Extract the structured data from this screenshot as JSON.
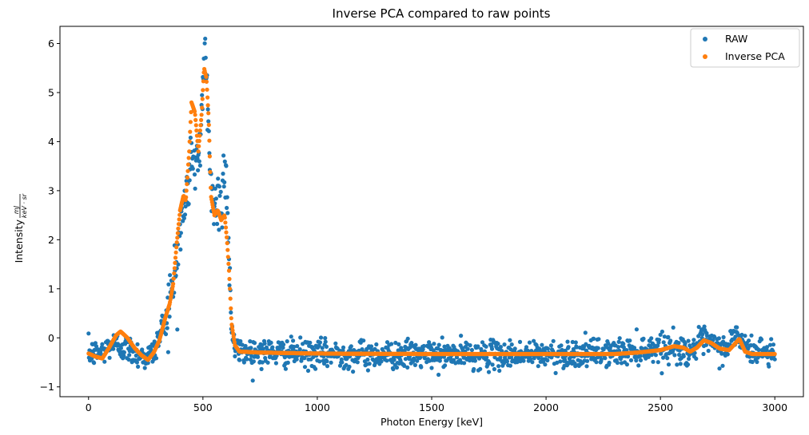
{
  "chart_data": {
    "type": "scatter",
    "title": "Inverse PCA compared to raw points",
    "xlabel": "Photon Energy [keV]",
    "ylabel_prefix": "Intensity",
    "ylabel_unit_numerator": "mJ",
    "ylabel_unit_denominator": "keV · sr",
    "xlim": [
      -125,
      3125
    ],
    "ylim": [
      -1.2,
      6.35
    ],
    "xticks": [
      0,
      500,
      1000,
      1500,
      2000,
      2500,
      3000
    ],
    "xtick_labels": [
      "0",
      "500",
      "1000",
      "1500",
      "2000",
      "2500",
      "3000"
    ],
    "yticks": [
      -1,
      0,
      1,
      2,
      3,
      4,
      5,
      6
    ],
    "ytick_labels": [
      "−1",
      "0",
      "1",
      "2",
      "3",
      "4",
      "5",
      "6"
    ],
    "grid": false,
    "legend_position": "top-right",
    "x_range": [
      0,
      3000
    ],
    "point_step": 2,
    "series": [
      {
        "name": "RAW",
        "color": "#1f77b4",
        "noise_sd": 0.14,
        "profile": [
          [
            0,
            -0.3
          ],
          [
            30,
            -0.32
          ],
          [
            60,
            -0.3
          ],
          [
            90,
            -0.15
          ],
          [
            130,
            -0.15
          ],
          [
            180,
            -0.25
          ],
          [
            230,
            -0.35
          ],
          [
            260,
            -0.4
          ],
          [
            290,
            -0.25
          ],
          [
            320,
            0.2
          ],
          [
            345,
            0.6
          ],
          [
            365,
            0.9
          ],
          [
            385,
            1.5
          ],
          [
            400,
            2.2
          ],
          [
            420,
            2.6
          ],
          [
            440,
            3.3
          ],
          [
            455,
            3.9
          ],
          [
            470,
            3.6
          ],
          [
            485,
            3.8
          ],
          [
            500,
            5.0
          ],
          [
            510,
            5.6
          ],
          [
            520,
            4.8
          ],
          [
            535,
            3.2
          ],
          [
            550,
            2.6
          ],
          [
            565,
            2.8
          ],
          [
            580,
            2.9
          ],
          [
            595,
            3.4
          ],
          [
            605,
            3.2
          ],
          [
            615,
            1.5
          ],
          [
            625,
            0.2
          ],
          [
            640,
            -0.25
          ],
          [
            700,
            -0.28
          ],
          [
            800,
            -0.3
          ],
          [
            1000,
            -0.33
          ],
          [
            1500,
            -0.35
          ],
          [
            2000,
            -0.34
          ],
          [
            2300,
            -0.3
          ],
          [
            2450,
            -0.22
          ],
          [
            2500,
            -0.18
          ],
          [
            2560,
            -0.2
          ],
          [
            2620,
            -0.28
          ],
          [
            2650,
            -0.18
          ],
          [
            2690,
            -0.05
          ],
          [
            2730,
            -0.15
          ],
          [
            2780,
            -0.25
          ],
          [
            2830,
            0.1
          ],
          [
            2850,
            -0.05
          ],
          [
            2880,
            -0.25
          ],
          [
            3000,
            -0.3
          ]
        ]
      },
      {
        "name": "Inverse PCA",
        "color": "#ff7f0e",
        "noise_sd": 0.0,
        "profile": [
          [
            0,
            -0.32
          ],
          [
            30,
            -0.38
          ],
          [
            60,
            -0.42
          ],
          [
            90,
            -0.2
          ],
          [
            120,
            0.05
          ],
          [
            140,
            0.13
          ],
          [
            170,
            0.0
          ],
          [
            200,
            -0.2
          ],
          [
            230,
            -0.35
          ],
          [
            260,
            -0.45
          ],
          [
            285,
            -0.3
          ],
          [
            310,
            -0.05
          ],
          [
            335,
            0.4
          ],
          [
            355,
            0.7
          ],
          [
            370,
            1.1
          ],
          [
            385,
            1.9
          ],
          [
            400,
            2.6
          ],
          [
            415,
            2.9
          ],
          [
            425,
            2.8
          ],
          [
            440,
            3.8
          ],
          [
            450,
            4.8
          ],
          [
            465,
            4.6
          ],
          [
            480,
            3.8
          ],
          [
            495,
            4.6
          ],
          [
            505,
            5.5
          ],
          [
            515,
            5.3
          ],
          [
            525,
            4.5
          ],
          [
            535,
            2.9
          ],
          [
            550,
            2.5
          ],
          [
            565,
            2.6
          ],
          [
            580,
            2.4
          ],
          [
            595,
            2.5
          ],
          [
            605,
            2.0
          ],
          [
            615,
            1.3
          ],
          [
            625,
            0.3
          ],
          [
            640,
            -0.15
          ],
          [
            660,
            -0.28
          ],
          [
            750,
            -0.3
          ],
          [
            1000,
            -0.32
          ],
          [
            1500,
            -0.33
          ],
          [
            2000,
            -0.33
          ],
          [
            2300,
            -0.33
          ],
          [
            2400,
            -0.3
          ],
          [
            2500,
            -0.25
          ],
          [
            2560,
            -0.17
          ],
          [
            2600,
            -0.2
          ],
          [
            2630,
            -0.28
          ],
          [
            2660,
            -0.2
          ],
          [
            2690,
            -0.05
          ],
          [
            2720,
            -0.1
          ],
          [
            2760,
            -0.22
          ],
          [
            2800,
            -0.25
          ],
          [
            2830,
            -0.1
          ],
          [
            2845,
            -0.02
          ],
          [
            2870,
            -0.28
          ],
          [
            2900,
            -0.33
          ],
          [
            3000,
            -0.33
          ]
        ]
      }
    ]
  }
}
